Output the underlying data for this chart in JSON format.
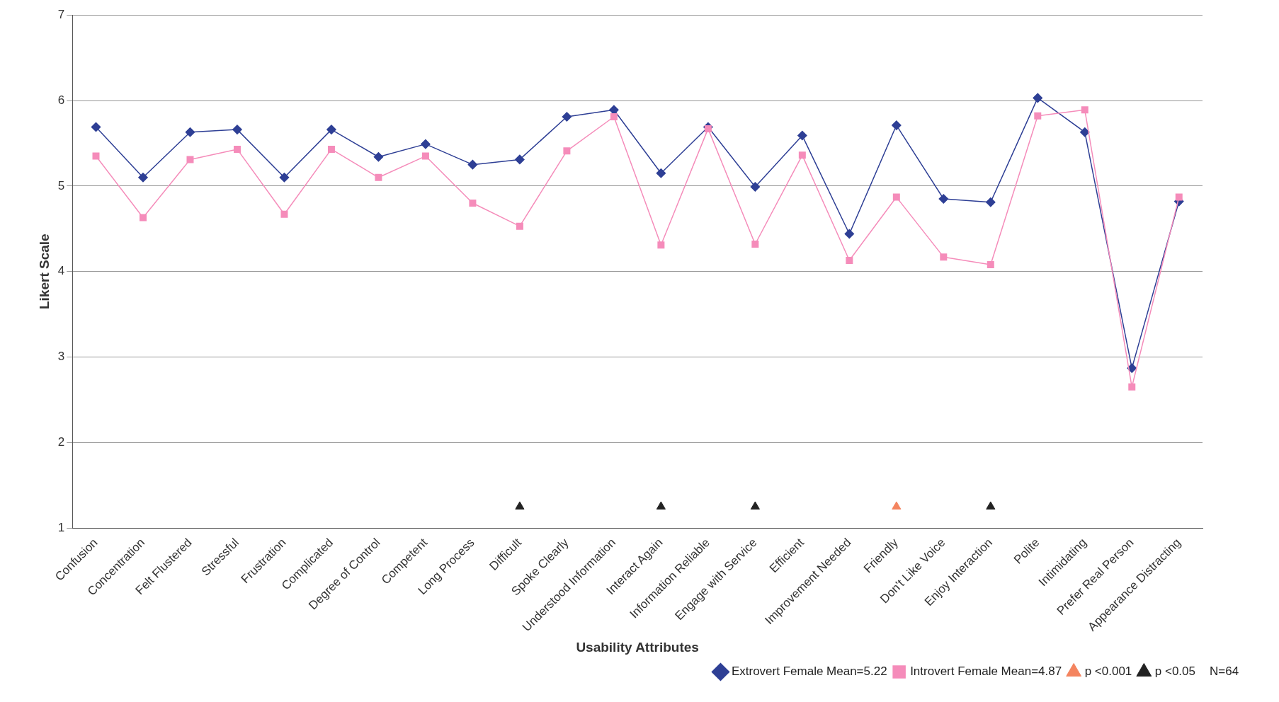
{
  "chart_data": {
    "type": "line",
    "xlabel": "Usability Attributes",
    "ylabel": "Likert Scale",
    "categories": [
      "Confusion",
      "Concentration",
      "Felt Flustered",
      "Stressful",
      "Frustration",
      "Complicated",
      "Degree of Control",
      "Competent",
      "Long Process",
      "Difficult",
      "Spoke Clearly",
      "Understood Information",
      "Interact Again",
      "Information Reliable",
      "Engage with Service",
      "Efficient",
      "Improvement Needed",
      "Friendly",
      "Don't Like Voice",
      "Enjoy Interaction",
      "Polite",
      "Intimidating",
      "Prefer Real Person",
      "Appearance Distracting"
    ],
    "series": [
      {
        "name": "Extrovert Female Mean=5.22",
        "color": "#2e3f95",
        "marker": "diamond",
        "values": [
          5.69,
          5.1,
          5.63,
          5.66,
          5.1,
          5.66,
          5.34,
          5.49,
          5.25,
          5.31,
          5.81,
          5.89,
          5.15,
          5.69,
          4.99,
          5.59,
          4.44,
          5.71,
          4.85,
          4.81,
          6.03,
          5.63,
          2.87,
          4.82
        ]
      },
      {
        "name": "Introvert Female Mean=4.87",
        "color": "#f58cba",
        "marker": "square",
        "values": [
          5.35,
          4.63,
          5.31,
          5.43,
          4.67,
          5.43,
          5.1,
          5.35,
          4.8,
          4.53,
          5.41,
          5.81,
          4.31,
          5.67,
          4.32,
          5.36,
          4.13,
          4.87,
          4.17,
          4.08,
          5.82,
          5.89,
          2.65,
          4.87
        ]
      },
      {
        "name": "p <0.001",
        "type": "scatter",
        "color": "#f4845f",
        "marker": "triangle",
        "x": [
          "Friendly"
        ],
        "values": [
          1.25
        ]
      },
      {
        "name": "p <0.05",
        "type": "scatter",
        "color": "#222222",
        "marker": "triangle",
        "x": [
          "Difficult",
          "Interact Again",
          "Engage with Service",
          "Enjoy Interaction"
        ],
        "values": [
          1.25,
          1.25,
          1.25,
          1.25
        ]
      }
    ],
    "ylim": [
      1,
      7
    ],
    "yticks": [
      1,
      2,
      3,
      4,
      5,
      6,
      7
    ],
    "grid": "y",
    "legend": "bottom right",
    "annotations": [
      "N=64"
    ]
  }
}
